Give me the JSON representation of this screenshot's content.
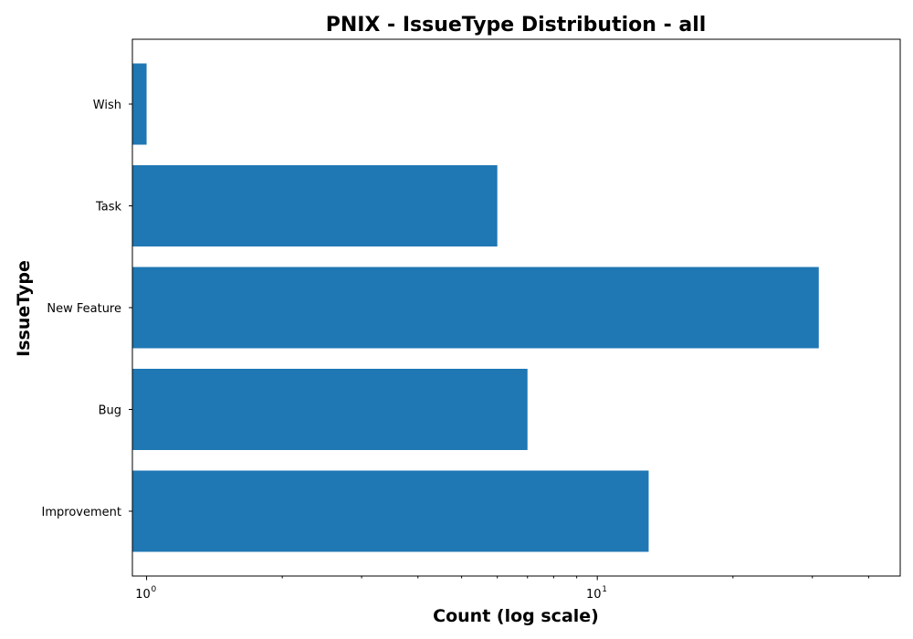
{
  "chart_data": {
    "type": "bar",
    "orientation": "horizontal",
    "title": "PNIX - IssueType Distribution - all",
    "xlabel": "Count (log scale)",
    "ylabel": "IssueType",
    "x_scale": "log",
    "x_range": [
      0.93,
      47
    ],
    "categories": [
      "Improvement",
      "Bug",
      "New Feature",
      "Task",
      "Wish"
    ],
    "values": [
      13,
      7,
      31,
      6,
      1
    ],
    "x_ticks": [
      {
        "base": "10",
        "exp": "0",
        "value": 1
      },
      {
        "base": "10",
        "exp": "1",
        "value": 10
      }
    ],
    "color": "#1f77b4",
    "grid": false
  }
}
